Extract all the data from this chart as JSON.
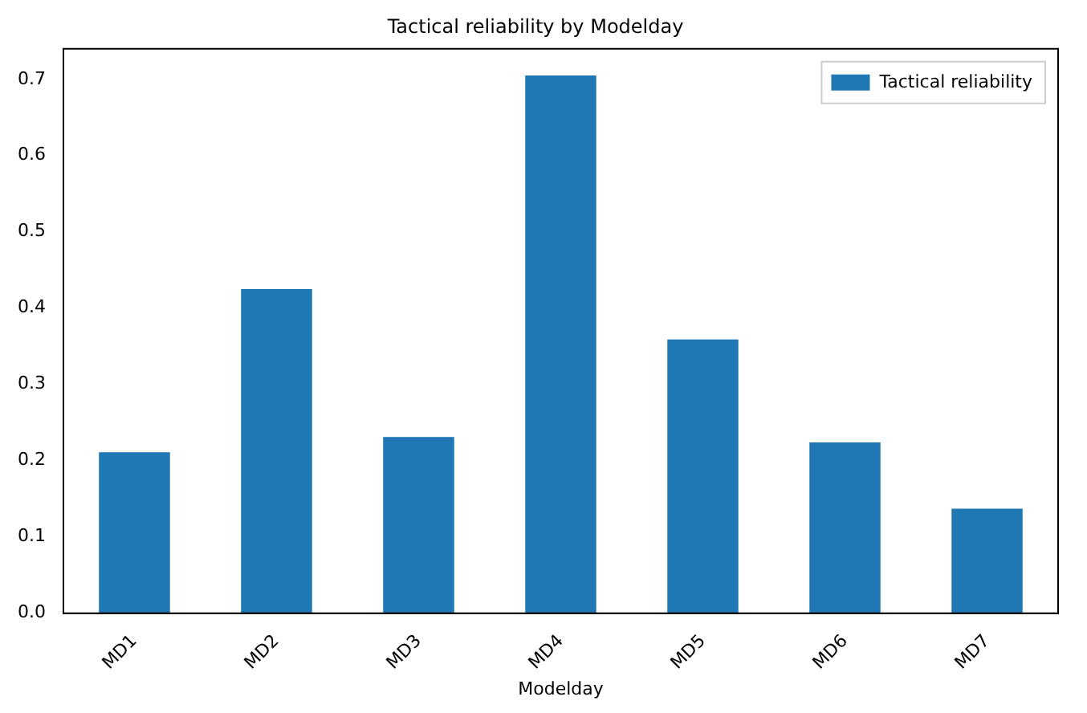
{
  "chart_data": {
    "type": "bar",
    "title": "Tactical reliability by Modelday",
    "xlabel": "Modelday",
    "categories": [
      "MD1",
      "MD2",
      "MD3",
      "MD4",
      "MD5",
      "MD6",
      "MD7"
    ],
    "series": [
      {
        "name": "Tactical reliability",
        "color": "#1f77b4",
        "values": [
          0.211,
          0.425,
          0.231,
          0.705,
          0.359,
          0.224,
          0.137
        ]
      }
    ],
    "ylim": [
      0,
      0.74
    ],
    "yticks": [
      {
        "value": 0,
        "label": "0.0"
      },
      0.1,
      0.2,
      0.3,
      0.4,
      0.5,
      0.6,
      0.7
    ],
    "grid": false,
    "legend": "top right"
  }
}
